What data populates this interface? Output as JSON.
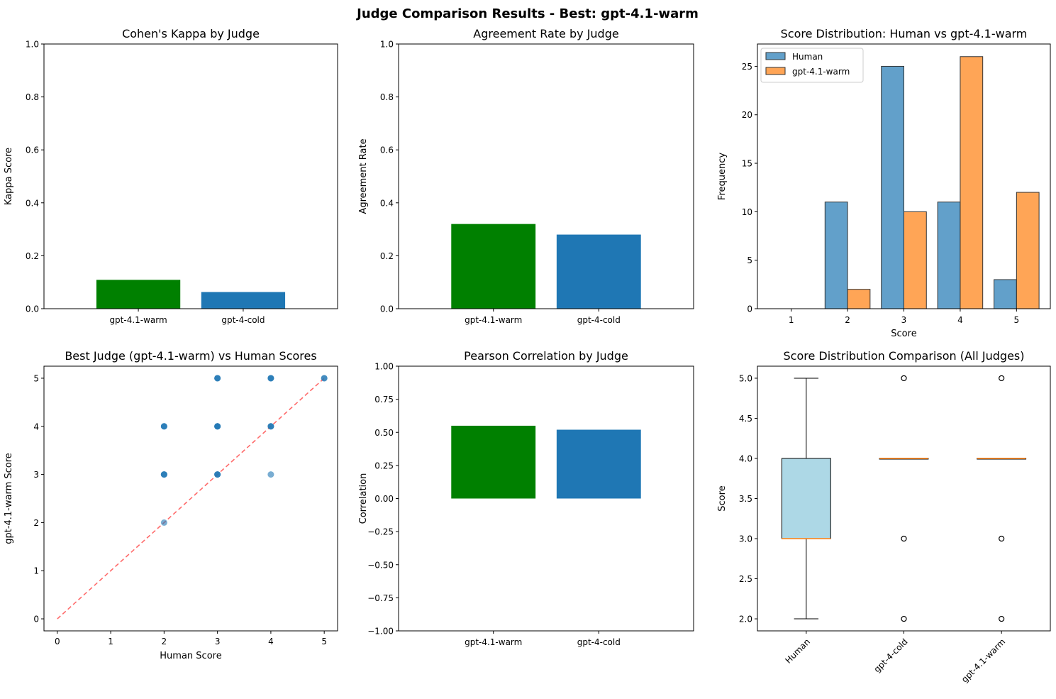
{
  "figure": {
    "suptitle": "Judge Comparison Results - Best: gpt-4.1-warm"
  },
  "colors": {
    "best": "#008000",
    "other": "#1f77b4",
    "human": "#1f77b4",
    "judge": "#ff7f0e",
    "diagonal": "#ff6b6b",
    "box_fill": "#add8e6",
    "median": "#ff7f0e"
  },
  "chart_data": [
    {
      "id": "kappa",
      "type": "bar",
      "title": "Cohen's Kappa by Judge",
      "xlabel": "",
      "ylabel": "Kappa Score",
      "categories": [
        "gpt-4.1-warm",
        "gpt-4-cold"
      ],
      "values": [
        0.109,
        0.063
      ],
      "bar_colors": [
        "#008000",
        "#1f77b4"
      ],
      "ylim": [
        0,
        1
      ],
      "yticks": [
        "0.0",
        "0.2",
        "0.4",
        "0.6",
        "0.8",
        "1.0"
      ],
      "grid": false
    },
    {
      "id": "agreement",
      "type": "bar",
      "title": "Agreement Rate by Judge",
      "xlabel": "",
      "ylabel": "Agreement Rate",
      "categories": [
        "gpt-4.1-warm",
        "gpt-4-cold"
      ],
      "values": [
        0.32,
        0.28
      ],
      "bar_colors": [
        "#008000",
        "#1f77b4"
      ],
      "ylim": [
        0,
        1
      ],
      "yticks": [
        "0.0",
        "0.2",
        "0.4",
        "0.6",
        "0.8",
        "1.0"
      ],
      "grid": false
    },
    {
      "id": "histogram",
      "type": "bar",
      "title": "Score Distribution: Human vs gpt-4.1-warm",
      "xlabel": "Score",
      "ylabel": "Frequency",
      "categories": [
        "1",
        "2",
        "3",
        "4",
        "5"
      ],
      "series": [
        {
          "name": "Human",
          "values": [
            0,
            11,
            25,
            11,
            3
          ]
        },
        {
          "name": "gpt-4.1-warm",
          "values": [
            0,
            2,
            10,
            26,
            12
          ]
        }
      ],
      "ylim": [
        0,
        27.3
      ],
      "yticks": [
        "0",
        "5",
        "10",
        "15",
        "20",
        "25"
      ],
      "legend": "top-left",
      "grid": false
    },
    {
      "id": "scatter",
      "type": "scatter",
      "title": "Best Judge (gpt-4.1-warm) vs Human Scores",
      "xlabel": "Human Score",
      "ylabel": "gpt-4.1-warm Score",
      "points": [
        {
          "x": 2,
          "y": 2
        },
        {
          "x": 2,
          "y": 3
        },
        {
          "x": 2,
          "y": 3
        },
        {
          "x": 2,
          "y": 3
        },
        {
          "x": 2,
          "y": 4
        },
        {
          "x": 2,
          "y": 4
        },
        {
          "x": 2,
          "y": 4
        },
        {
          "x": 3,
          "y": 3
        },
        {
          "x": 3,
          "y": 3
        },
        {
          "x": 3,
          "y": 3
        },
        {
          "x": 3,
          "y": 4
        },
        {
          "x": 3,
          "y": 4
        },
        {
          "x": 3,
          "y": 4
        },
        {
          "x": 3,
          "y": 4
        },
        {
          "x": 3,
          "y": 5
        },
        {
          "x": 3,
          "y": 5
        },
        {
          "x": 3,
          "y": 5
        },
        {
          "x": 4,
          "y": 3
        },
        {
          "x": 4,
          "y": 4
        },
        {
          "x": 4,
          "y": 4
        },
        {
          "x": 4,
          "y": 4
        },
        {
          "x": 4,
          "y": 5
        },
        {
          "x": 4,
          "y": 5
        },
        {
          "x": 4,
          "y": 5
        },
        {
          "x": 5,
          "y": 5
        },
        {
          "x": 5,
          "y": 5
        }
      ],
      "diagonal": [
        [
          0,
          0
        ],
        [
          5,
          5
        ]
      ],
      "xlim": [
        -0.25,
        5.25
      ],
      "ylim": [
        -0.25,
        5.25
      ],
      "xticks": [
        "0",
        "1",
        "2",
        "3",
        "4",
        "5"
      ],
      "yticks": [
        "0",
        "1",
        "2",
        "3",
        "4",
        "5"
      ],
      "grid": false
    },
    {
      "id": "pearson",
      "type": "bar",
      "title": "Pearson Correlation by Judge",
      "xlabel": "",
      "ylabel": "Correlation",
      "categories": [
        "gpt-4.1-warm",
        "gpt-4-cold"
      ],
      "values": [
        0.55,
        0.52
      ],
      "bar_colors": [
        "#008000",
        "#1f77b4"
      ],
      "ylim": [
        -1,
        1
      ],
      "yticks": [
        "−1.00",
        "−0.75",
        "−0.50",
        "−0.25",
        "0.00",
        "0.25",
        "0.50",
        "0.75",
        "1.00"
      ],
      "grid": false
    },
    {
      "id": "boxplot",
      "type": "box",
      "title": "Score Distribution Comparison (All Judges)",
      "xlabel": "",
      "ylabel": "Score",
      "categories": [
        "Human",
        "gpt-4-cold",
        "gpt-4.1-warm"
      ],
      "boxes": [
        {
          "q1": 3,
          "median": 3,
          "q3": 4,
          "whisker_low": 2,
          "whisker_high": 5,
          "outliers": [],
          "filled": true
        },
        {
          "q1": 4,
          "median": 4,
          "q3": 4,
          "whisker_low": 4,
          "whisker_high": 4,
          "outliers": [
            2,
            3,
            5
          ],
          "filled": true
        },
        {
          "q1": 4,
          "median": 4,
          "q3": 4,
          "whisker_low": 4,
          "whisker_high": 4,
          "outliers": [
            2,
            3,
            5
          ],
          "filled": false
        }
      ],
      "ylim": [
        1.85,
        5.15
      ],
      "yticks": [
        "2.0",
        "2.5",
        "3.0",
        "3.5",
        "4.0",
        "4.5",
        "5.0"
      ],
      "grid": false
    }
  ]
}
